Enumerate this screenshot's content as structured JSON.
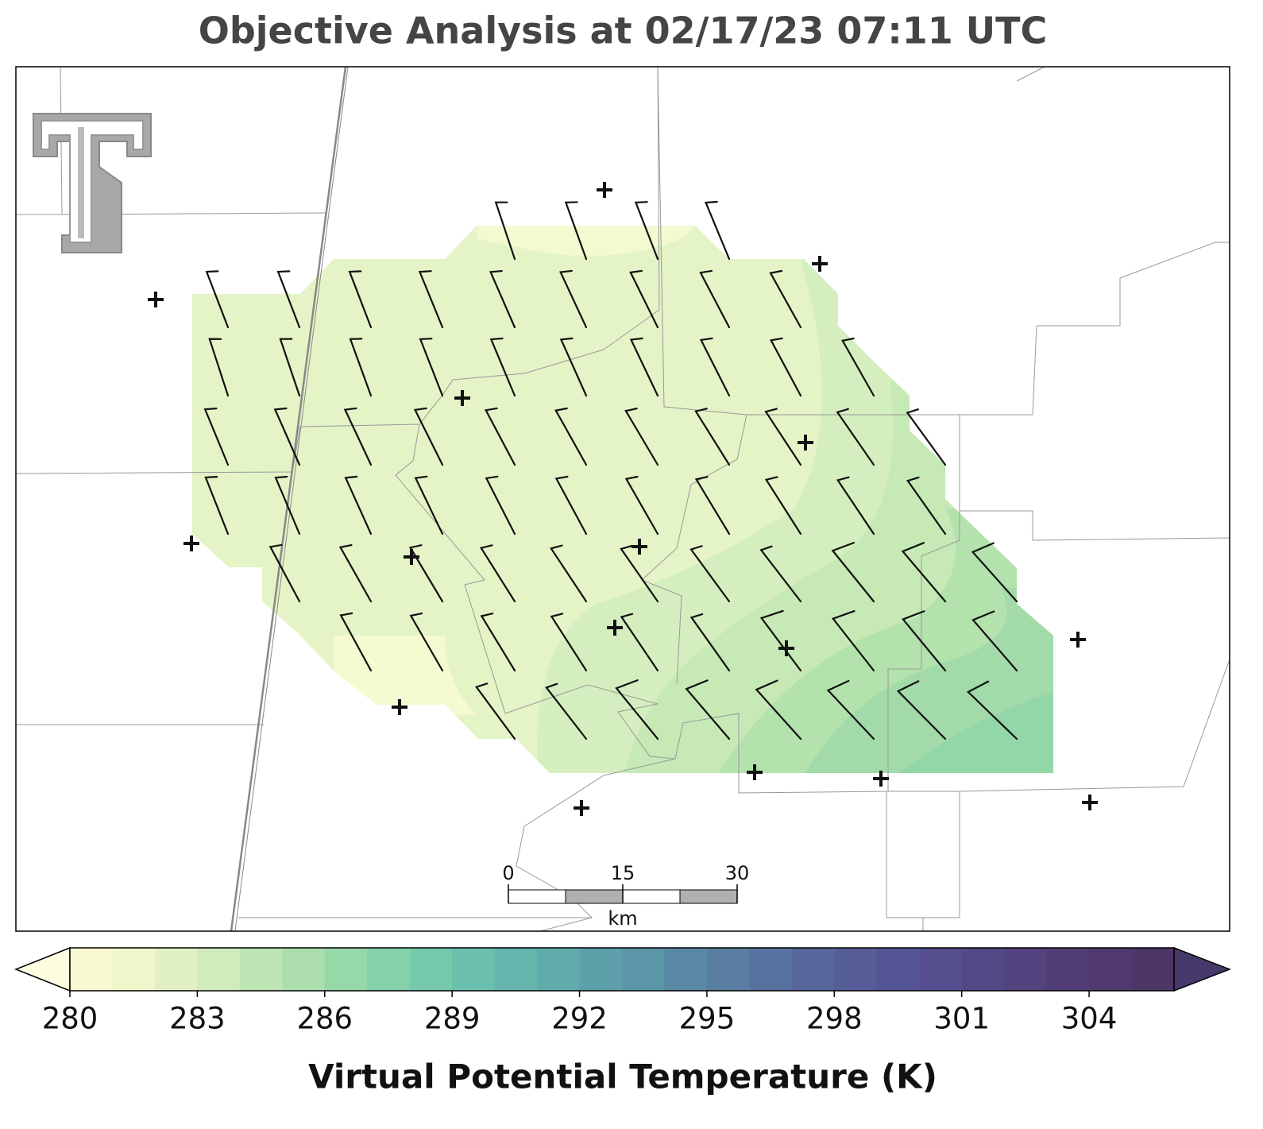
{
  "title": "Objective Analysis at 02/17/23 07:11 UTC",
  "scale_bar": {
    "ticks": [
      0,
      15,
      30
    ],
    "range": [
      0,
      30
    ],
    "unit": "km"
  },
  "colorbar": {
    "clim": [
      280,
      306
    ],
    "ticks": [
      280,
      283,
      286,
      289,
      292,
      295,
      298,
      301,
      304
    ],
    "label": "Virtual Potential Temperature (K)",
    "under_color": "#fdfde0",
    "over_color": "#463a6a",
    "colors": [
      "#fafad2",
      "#eff7ca",
      "#e1f1c3",
      "#d1ebbd",
      "#bfe5b4",
      "#abdeac",
      "#97d8a9",
      "#84d1aa",
      "#75caac",
      "#6bc0ad",
      "#64b6ad",
      "#60abac",
      "#5da0aa",
      "#5b95a8",
      "#5a89a5",
      "#597ea2",
      "#58729f",
      "#57679c",
      "#565d99",
      "#555596",
      "#544e8e",
      "#534886",
      "#52427d",
      "#513d75",
      "#50396e",
      "#4e3667"
    ]
  }
}
